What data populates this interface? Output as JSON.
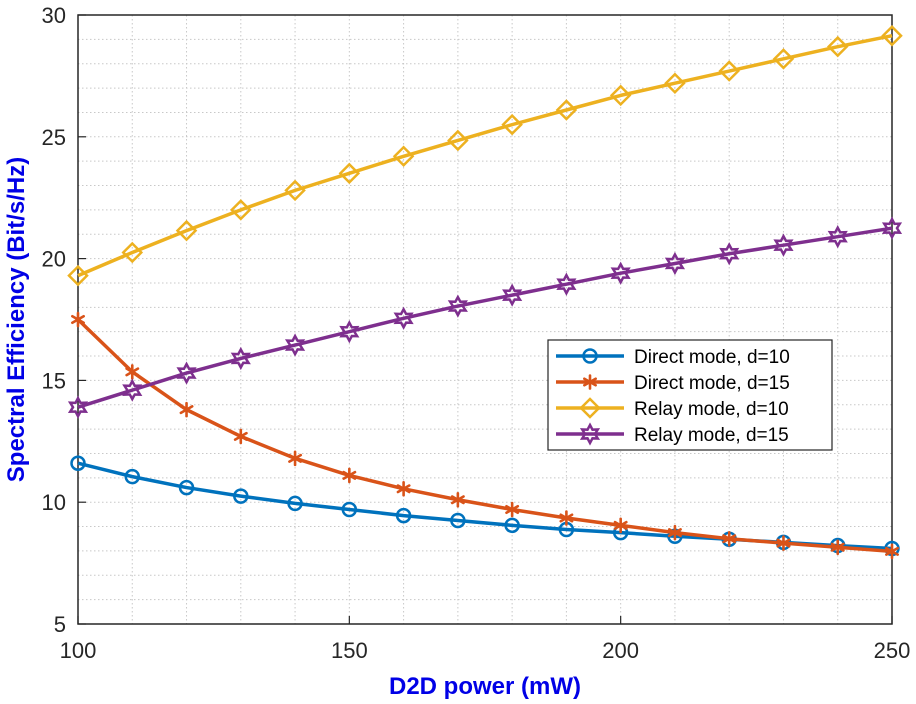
{
  "chart_data": {
    "type": "line",
    "xlabel": "D2D power (mW)",
    "ylabel": "Spectral Efficiency (Bit/s/Hz)",
    "xlim": [
      100,
      250
    ],
    "ylim": [
      5,
      30
    ],
    "xticks": [
      100,
      150,
      200,
      250
    ],
    "yticks": [
      5,
      10,
      15,
      20,
      25,
      30
    ],
    "grid": "major and minor, dotted",
    "legend_position": "center-right",
    "x": [
      100,
      110,
      120,
      130,
      140,
      150,
      160,
      170,
      180,
      190,
      200,
      210,
      220,
      230,
      240,
      250
    ],
    "series": [
      {
        "name": "Direct mode, d=10",
        "color": "#0072bd",
        "marker": "circle",
        "values": [
          11.6,
          11.05,
          10.6,
          10.25,
          9.95,
          9.7,
          9.45,
          9.25,
          9.05,
          8.88,
          8.75,
          8.6,
          8.48,
          8.35,
          8.22,
          8.1
        ]
      },
      {
        "name": "Direct mode, d=15",
        "color": "#d95319",
        "marker": "asterisk",
        "values": [
          17.5,
          15.35,
          13.8,
          12.7,
          11.8,
          11.1,
          10.55,
          10.1,
          9.7,
          9.35,
          9.05,
          8.75,
          8.5,
          8.32,
          8.15,
          7.98
        ]
      },
      {
        "name": "Relay mode, d=10",
        "color": "#edb120",
        "marker": "diamond",
        "values": [
          19.3,
          20.25,
          21.15,
          22.0,
          22.8,
          23.5,
          24.2,
          24.85,
          25.5,
          26.1,
          26.7,
          27.2,
          27.7,
          28.2,
          28.7,
          29.15
        ]
      },
      {
        "name": "Relay mode, d=15",
        "color": "#7e2f8e",
        "marker": "hexagram",
        "values": [
          13.9,
          14.6,
          15.3,
          15.9,
          16.45,
          17.0,
          17.55,
          18.05,
          18.5,
          18.95,
          19.4,
          19.8,
          20.2,
          20.55,
          20.9,
          21.25
        ]
      }
    ]
  }
}
